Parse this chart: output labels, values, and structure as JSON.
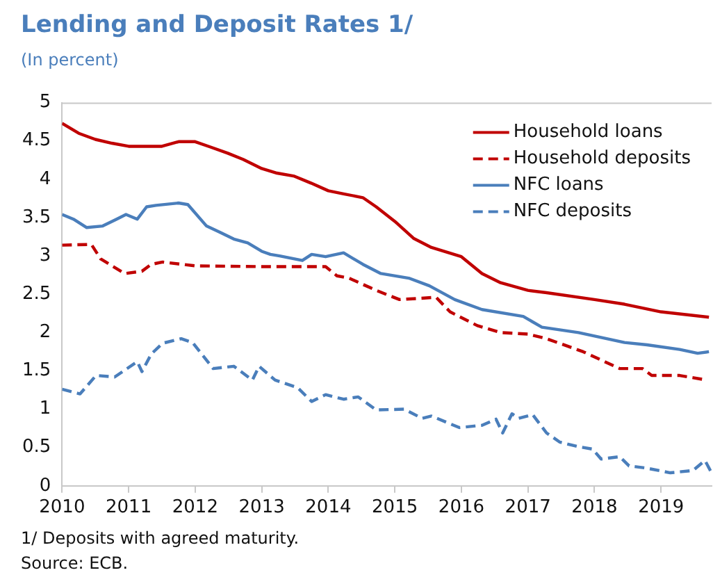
{
  "chart_data": {
    "type": "line",
    "title": "Lending and Deposit Rates 1/",
    "subtitle": "(In percent)",
    "annotations": [
      "1/ Deposits with agreed maturity.",
      "Source: ECB."
    ],
    "xlim": [
      2010,
      2019.76
    ],
    "xticks": [
      2010,
      2011,
      2012,
      2013,
      2014,
      2015,
      2016,
      2017,
      2018,
      2019
    ],
    "ylim": [
      0,
      5
    ],
    "yticks": [
      0,
      0.5,
      1,
      1.5,
      2,
      2.5,
      3,
      3.5,
      4,
      4.5,
      5
    ],
    "grid": false,
    "legend": "top right",
    "marker": "none",
    "series": [
      {
        "name": "Household loans",
        "color": "#c00000",
        "line_style": "solid",
        "x": [
          2010,
          2010.25,
          2010.5,
          2010.75,
          2011,
          2011.5,
          2011.75,
          2012,
          2012.23,
          2012.49,
          2012.72,
          2013,
          2013.23,
          2013.49,
          2013.74,
          2014,
          2014.23,
          2014.52,
          2014.72,
          2015,
          2015.28,
          2015.55,
          2016,
          2016.31,
          2016.59,
          2017,
          2017.28,
          2018,
          2018.45,
          2019,
          2019.72
        ],
        "values": [
          4.73,
          4.6,
          4.52,
          4.47,
          4.43,
          4.43,
          4.49,
          4.49,
          4.42,
          4.34,
          4.26,
          4.14,
          4.08,
          4.04,
          3.95,
          3.85,
          3.81,
          3.76,
          3.64,
          3.45,
          3.23,
          3.11,
          2.99,
          2.77,
          2.65,
          2.55,
          2.52,
          2.43,
          2.37,
          2.27,
          2.2
        ]
      },
      {
        "name": "Household deposits",
        "color": "#c00000",
        "line_style": "dashed",
        "x": [
          2010,
          2010.44,
          2010.58,
          2010.94,
          2011.2,
          2011.34,
          2011.51,
          2012,
          2013,
          2013.96,
          2014.13,
          2014.31,
          2014.72,
          2015.07,
          2015.62,
          2015.83,
          2016.24,
          2016.59,
          2017,
          2017.28,
          2017.83,
          2018.38,
          2018.72,
          2018.86,
          2019.28,
          2019.69
        ],
        "values": [
          3.14,
          3.15,
          2.96,
          2.77,
          2.8,
          2.89,
          2.92,
          2.87,
          2.86,
          2.86,
          2.74,
          2.71,
          2.55,
          2.43,
          2.46,
          2.27,
          2.09,
          2,
          1.98,
          1.92,
          1.75,
          1.53,
          1.53,
          1.44,
          1.44,
          1.38
        ]
      },
      {
        "name": "NFC loans",
        "color": "#4a7ebb",
        "line_style": "solid",
        "x": [
          2010,
          2010.17,
          2010.37,
          2010.61,
          2010.82,
          2010.96,
          2011.13,
          2011.27,
          2011.41,
          2011.75,
          2011.89,
          2012.17,
          2012.37,
          2012.58,
          2012.79,
          2013,
          2013.13,
          2013.27,
          2013.61,
          2013.75,
          2013.96,
          2014.23,
          2014.52,
          2014.79,
          2015.21,
          2015.52,
          2015.9,
          2016.31,
          2016.93,
          2017.21,
          2017.76,
          2018.45,
          2018.79,
          2019.28,
          2019.55,
          2019.72
        ],
        "values": [
          3.54,
          3.48,
          3.37,
          3.39,
          3.48,
          3.54,
          3.48,
          3.64,
          3.66,
          3.69,
          3.67,
          3.39,
          3.31,
          3.22,
          3.17,
          3.06,
          3.02,
          3,
          2.94,
          3.02,
          2.99,
          3.04,
          2.89,
          2.77,
          2.71,
          2.61,
          2.43,
          2.3,
          2.21,
          2.07,
          2,
          1.87,
          1.84,
          1.78,
          1.73,
          1.75
        ]
      },
      {
        "name": "NFC deposits",
        "color": "#4a7ebb",
        "line_style": "dashed",
        "x": [
          2010,
          2010.27,
          2010.51,
          2010.79,
          2011.13,
          2011.2,
          2011.34,
          2011.51,
          2011.79,
          2011.96,
          2012.27,
          2012.58,
          2012.86,
          2012.96,
          2013.2,
          2013.54,
          2013.75,
          2013.96,
          2014.23,
          2014.45,
          2014.72,
          2015.14,
          2015.41,
          2015.55,
          2015.97,
          2016.31,
          2016.52,
          2016.62,
          2016.76,
          2016.86,
          2017.07,
          2017.28,
          2017.48,
          2017.76,
          2017.97,
          2018.1,
          2018.38,
          2018.52,
          2018.79,
          2019.14,
          2019.48,
          2019.66,
          2019.76
        ],
        "values": [
          1.26,
          1.2,
          1.44,
          1.42,
          1.62,
          1.49,
          1.72,
          1.86,
          1.92,
          1.87,
          1.53,
          1.56,
          1.38,
          1.56,
          1.38,
          1.28,
          1.1,
          1.19,
          1.13,
          1.16,
          0.99,
          1,
          0.88,
          0.91,
          0.76,
          0.79,
          0.87,
          0.69,
          0.94,
          0.88,
          0.93,
          0.69,
          0.57,
          0.51,
          0.48,
          0.35,
          0.38,
          0.26,
          0.23,
          0.17,
          0.2,
          0.33,
          0.17
        ]
      }
    ]
  }
}
